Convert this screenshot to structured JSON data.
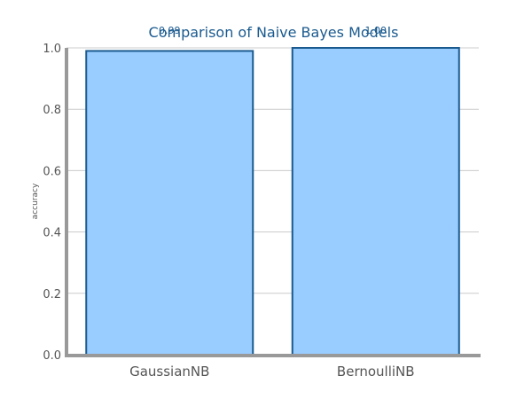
{
  "chart_data": {
    "type": "bar",
    "title": "Comparison of Naive Bayes Models",
    "xlabel": "",
    "ylabel": "accuracy",
    "categories": [
      "GaussianNB",
      "BernoulliNB"
    ],
    "values": [
      0.99,
      1.0
    ],
    "value_labels": [
      "0.99",
      "1.00"
    ],
    "ylim": [
      0,
      1.0
    ],
    "yticks": [
      "0.0",
      "0.2",
      "0.4",
      "0.6",
      "0.8",
      "1.0"
    ],
    "grid": true,
    "colors": {
      "bar_fill": "#99ccff",
      "bar_stroke": "#1a5a8f",
      "title": "#1a5a8f",
      "grid": "#cccccc",
      "axis": "#999999"
    }
  }
}
